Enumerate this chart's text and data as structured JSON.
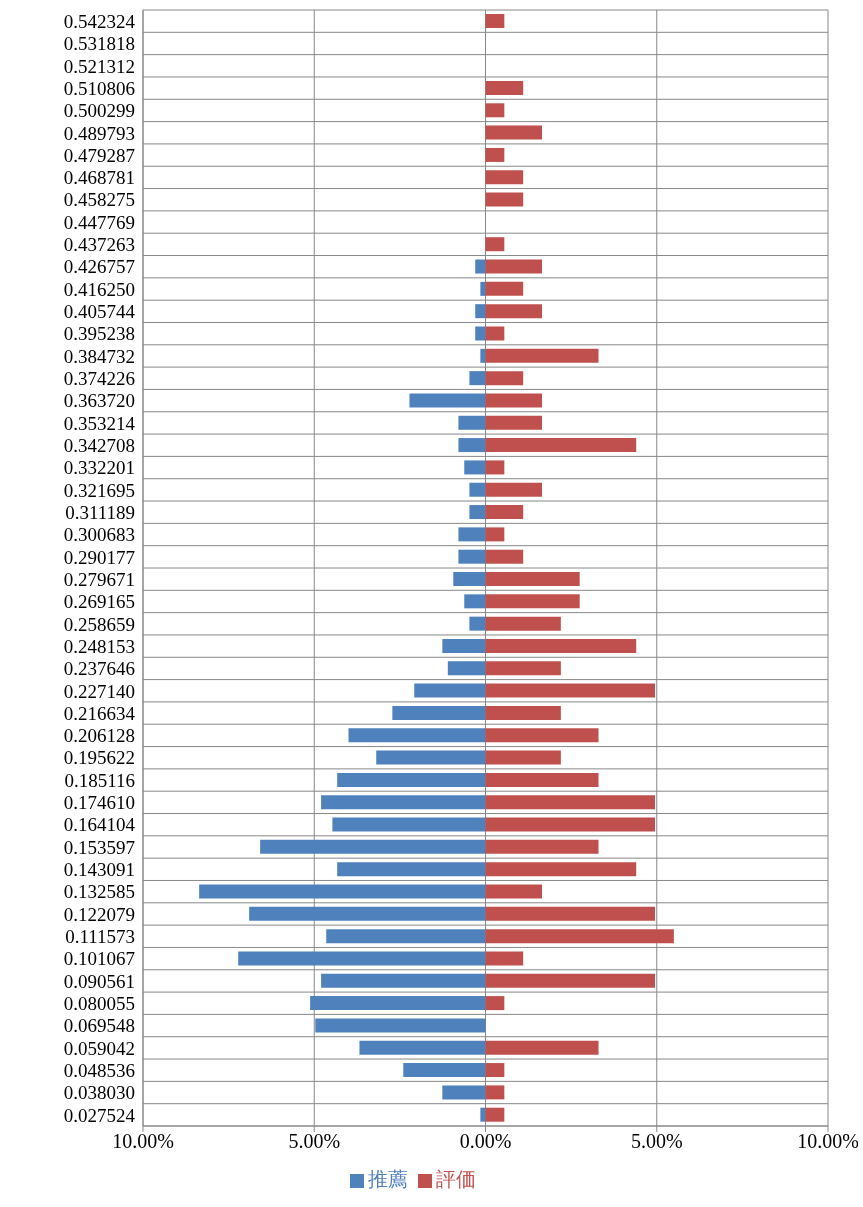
{
  "chart_data": {
    "type": "bar",
    "orientation": "horizontal",
    "stacked": true,
    "grid": true,
    "legend": "bottom",
    "categories": [
      "0.542324",
      "0.531818",
      "0.521312",
      "0.510806",
      "0.500299",
      "0.489793",
      "0.479287",
      "0.468781",
      "0.458275",
      "0.447769",
      "0.437263",
      "0.426757",
      "0.416250",
      "0.405744",
      "0.395238",
      "0.384732",
      "0.374226",
      "0.363720",
      "0.353214",
      "0.342708",
      "0.332201",
      "0.321695",
      "0.311189",
      "0.300683",
      "0.290177",
      "0.279671",
      "0.269165",
      "0.258659",
      "0.248153",
      "0.237646",
      "0.227140",
      "0.216634",
      "0.206128",
      "0.195622",
      "0.185116",
      "0.174610",
      "0.164104",
      "0.153597",
      "0.143091",
      "0.132585",
      "0.122079",
      "0.111573",
      "0.101067",
      "0.090561",
      "0.080055",
      "0.069548",
      "0.059042",
      "0.048536",
      "0.038030",
      "0.027524"
    ],
    "series": [
      {
        "name": "推薦",
        "color": "#4f81bd",
        "values": [
          0,
          0,
          0,
          0,
          0,
          0,
          0,
          0,
          0,
          0,
          0,
          -0.3,
          -0.15,
          -0.3,
          -0.3,
          -0.15,
          -0.47,
          -2.22,
          -0.79,
          -0.79,
          -0.62,
          -0.47,
          -0.47,
          -0.79,
          -0.79,
          -0.94,
          -0.62,
          -0.47,
          -1.26,
          -1.1,
          -2.08,
          -2.72,
          -4.0,
          -3.19,
          -4.33,
          -4.8,
          -4.47,
          -6.58,
          -4.33,
          -8.36,
          -6.9,
          -4.65,
          -7.22,
          -4.8,
          -5.12,
          -4.97,
          -3.68,
          -2.4,
          -1.26,
          -0.15
        ]
      },
      {
        "name": "評価",
        "color": "#c0504d",
        "values": [
          0.55,
          0,
          0,
          1.1,
          0.55,
          1.65,
          0.55,
          1.1,
          1.1,
          0,
          0.55,
          1.65,
          1.1,
          1.65,
          0.55,
          3.3,
          1.1,
          1.65,
          1.65,
          4.4,
          0.55,
          1.65,
          1.1,
          0.55,
          1.1,
          2.75,
          2.75,
          2.2,
          4.4,
          2.2,
          4.95,
          2.2,
          3.3,
          2.2,
          3.3,
          4.95,
          4.95,
          3.3,
          4.4,
          1.65,
          4.95,
          5.5,
          1.1,
          4.95,
          0.55,
          0,
          3.3,
          0.55,
          0.55,
          0.55
        ]
      }
    ],
    "xlim": [
      -10,
      10
    ],
    "xticks": [
      {
        "value": -10,
        "label": "10.00%"
      },
      {
        "value": -5,
        "label": "5.00%"
      },
      {
        "value": 0,
        "label": "0.00%"
      },
      {
        "value": 5,
        "label": "5.00%"
      },
      {
        "value": 10,
        "label": "10.00%"
      }
    ]
  }
}
